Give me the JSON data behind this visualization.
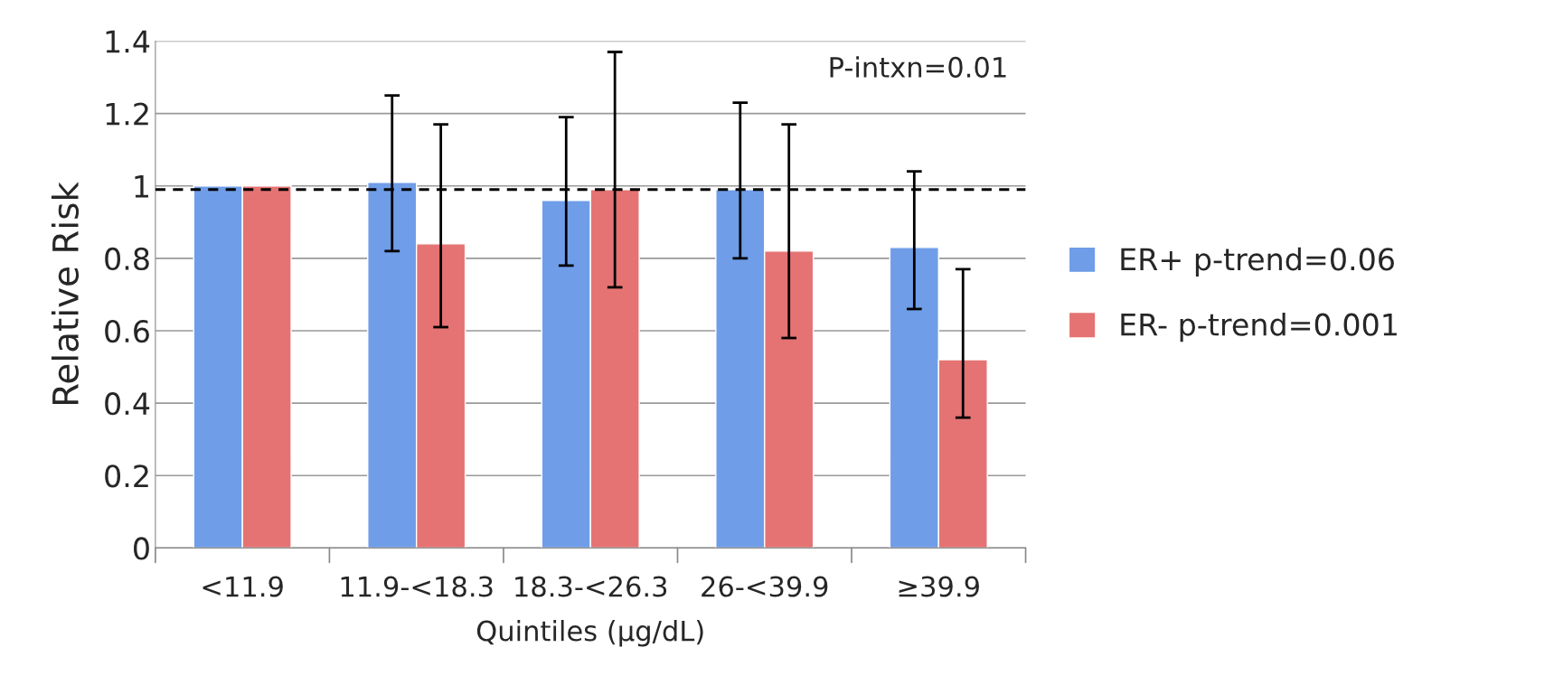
{
  "chart_data": {
    "type": "bar",
    "xlabel": "Quintiles (µg/dL)",
    "ylabel": "Relative Risk",
    "categories": [
      "<11.9",
      "11.9-<18.3",
      "18.3-<26.3",
      "26-<39.9",
      "≥39.9"
    ],
    "series": [
      {
        "name": "ER+ p-trend=0.06",
        "color": "#6f9de8",
        "values": [
          1.0,
          1.01,
          0.96,
          0.99,
          0.83
        ],
        "errors": [
          null,
          [
            0.82,
            1.25
          ],
          [
            0.78,
            1.19
          ],
          [
            0.8,
            1.23
          ],
          [
            0.66,
            1.04
          ]
        ]
      },
      {
        "name": "ER- p-trend=0.001",
        "color": "#e57373",
        "values": [
          1.0,
          0.84,
          0.99,
          0.82,
          0.52
        ],
        "errors": [
          null,
          [
            0.61,
            1.17
          ],
          [
            0.72,
            1.37
          ],
          [
            0.58,
            1.17
          ],
          [
            0.36,
            0.77
          ]
        ]
      }
    ],
    "ylim": [
      0,
      1.4
    ],
    "yticks": [
      0,
      0.2,
      0.4,
      0.6,
      0.8,
      1,
      1.2,
      1.4
    ],
    "grid": "y",
    "legend": "right",
    "ref_lines": [
      {
        "axis": "y",
        "value": 0.99,
        "line_style": "dashed",
        "color": "#000000"
      }
    ],
    "annotations": [
      "P-intxn=0.01"
    ]
  }
}
